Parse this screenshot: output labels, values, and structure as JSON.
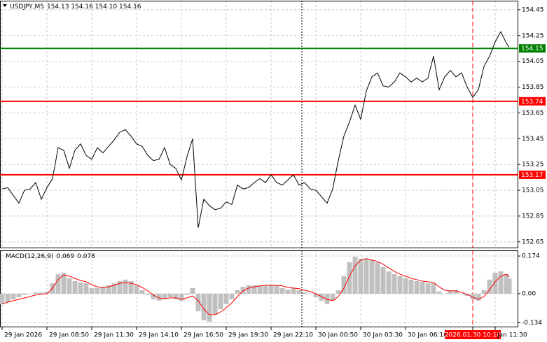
{
  "chart_data": [
    {
      "type": "line",
      "title": "USDJPY,M5",
      "subtitle": "154.13 154.16 154.10 154.16",
      "color": "#000000",
      "grid": true,
      "x": [
        0,
        4,
        8,
        12,
        16,
        20,
        24,
        28,
        32,
        36,
        40,
        44,
        48,
        52,
        56,
        60,
        64,
        68,
        72,
        76,
        80,
        84,
        88,
        92,
        96,
        100,
        104,
        108,
        112,
        116,
        120,
        124,
        128,
        132,
        136,
        140,
        144,
        148,
        152,
        156,
        160,
        164,
        168,
        172,
        176,
        180,
        184,
        188,
        192,
        196,
        200,
        204,
        208,
        212,
        216,
        220,
        224,
        228,
        232,
        236,
        240,
        244,
        248,
        252,
        256,
        260,
        264,
        268,
        272,
        276,
        280,
        284,
        288,
        292,
        296,
        300,
        304,
        308,
        312,
        316,
        320,
        324,
        328,
        332,
        336,
        340,
        344,
        348,
        352,
        356,
        360,
        362
      ],
      "values": [
        153.06,
        153.07,
        153.01,
        152.95,
        153.05,
        153.06,
        153.11,
        152.98,
        153.07,
        153.14,
        153.38,
        153.36,
        153.22,
        153.36,
        153.41,
        153.32,
        153.29,
        153.38,
        153.34,
        153.39,
        153.44,
        153.5,
        153.52,
        153.47,
        153.41,
        153.39,
        153.32,
        153.28,
        153.29,
        153.38,
        153.25,
        153.22,
        153.13,
        153.31,
        153.45,
        152.76,
        152.98,
        152.93,
        152.9,
        152.91,
        152.96,
        152.94,
        153.09,
        153.06,
        153.07,
        153.11,
        153.14,
        153.11,
        153.17,
        153.11,
        153.09,
        153.13,
        153.17,
        153.09,
        153.11,
        153.06,
        153.05,
        153.0,
        152.95,
        153.06,
        153.28,
        153.47,
        153.58,
        153.71,
        153.6,
        153.82,
        153.93,
        153.96,
        153.86,
        153.85,
        153.89,
        153.96,
        153.93,
        153.89,
        153.92,
        153.89,
        153.92,
        154.09,
        153.83,
        153.93,
        153.98,
        153.93,
        153.96,
        153.85,
        153.77,
        153.83,
        154.01,
        154.09,
        154.2,
        154.28,
        154.19,
        154.16
      ],
      "xlim": [
        -1.5,
        368.5
      ],
      "ylim": [
        152.6,
        154.52
      ],
      "yticks": [
        154.45,
        154.25,
        154.05,
        153.85,
        153.65,
        153.45,
        153.25,
        153.05,
        152.85,
        152.65
      ],
      "levels": [
        {
          "value": 154.15,
          "color": "#008000"
        },
        {
          "value": 153.74,
          "color": "#ff0000"
        },
        {
          "value": 153.17,
          "color": "#ff0000"
        }
      ],
      "vlines": [
        {
          "value": 214,
          "style": "dotted",
          "color": "#000000"
        },
        {
          "value": 336,
          "style": "dashed",
          "color": "#ff0000"
        }
      ]
    },
    {
      "type": "macd",
      "title": "MACD(12,26,9)",
      "color": "#c0c0c0",
      "signal_color": "#ff0000",
      "grid": true,
      "x": [
        0,
        4,
        8,
        12,
        16,
        20,
        24,
        28,
        32,
        36,
        40,
        44,
        48,
        52,
        56,
        60,
        64,
        68,
        72,
        76,
        80,
        84,
        88,
        92,
        96,
        100,
        104,
        108,
        112,
        116,
        120,
        124,
        128,
        132,
        136,
        140,
        144,
        148,
        152,
        156,
        160,
        164,
        168,
        172,
        176,
        180,
        184,
        188,
        192,
        196,
        200,
        204,
        208,
        212,
        216,
        220,
        224,
        228,
        232,
        236,
        240,
        244,
        248,
        252,
        256,
        260,
        264,
        268,
        272,
        276,
        280,
        284,
        288,
        292,
        296,
        300,
        304,
        308,
        312,
        316,
        320,
        324,
        328,
        332,
        336,
        340,
        344,
        348,
        352,
        356,
        360,
        362
      ],
      "values": [
        -0.048,
        -0.039,
        -0.026,
        -0.016,
        -0.006,
        0,
        0.006,
        0.006,
        0.01,
        0.048,
        0.09,
        0.097,
        0.071,
        0.058,
        0.052,
        0.048,
        0.026,
        0.026,
        0.032,
        0.039,
        0.048,
        0.058,
        0.065,
        0.058,
        0.039,
        0.016,
        -0.006,
        -0.026,
        -0.032,
        -0.026,
        -0.016,
        -0.026,
        -0.032,
        -0.006,
        0.026,
        -0.081,
        -0.123,
        -0.129,
        -0.097,
        -0.071,
        -0.048,
        -0.026,
        0.016,
        0.032,
        0.039,
        0.039,
        0.039,
        0.039,
        0.042,
        0.039,
        0.026,
        0.019,
        0.026,
        0.016,
        0.006,
        0,
        -0.016,
        -0.032,
        -0.048,
        -0.032,
        0.016,
        0.081,
        0.145,
        0.171,
        0.162,
        0.162,
        0.155,
        0.145,
        0.123,
        0.103,
        0.09,
        0.081,
        0.071,
        0.065,
        0.058,
        0.055,
        0.048,
        0.048,
        0.01,
        0,
        0.016,
        0.016,
        0,
        -0.01,
        -0.026,
        -0.032,
        0.016,
        0.065,
        0.097,
        0.103,
        0.09,
        0.069
      ],
      "signal": [
        -0.048,
        -0.039,
        -0.032,
        -0.026,
        -0.019,
        -0.013,
        -0.006,
        -0.003,
        0,
        0.026,
        0.065,
        0.087,
        0.081,
        0.071,
        0.061,
        0.055,
        0.042,
        0.032,
        0.029,
        0.032,
        0.039,
        0.048,
        0.052,
        0.048,
        0.042,
        0.029,
        0.013,
        -0.006,
        -0.019,
        -0.023,
        -0.019,
        -0.019,
        -0.026,
        -0.019,
        -0.01,
        -0.032,
        -0.071,
        -0.097,
        -0.097,
        -0.084,
        -0.065,
        -0.042,
        -0.013,
        0.013,
        0.026,
        0.032,
        0.036,
        0.039,
        0.039,
        0.039,
        0.036,
        0.029,
        0.026,
        0.023,
        0.016,
        0.01,
        0,
        -0.013,
        -0.026,
        -0.032,
        -0.013,
        0.026,
        0.081,
        0.129,
        0.155,
        0.162,
        0.155,
        0.149,
        0.136,
        0.119,
        0.103,
        0.09,
        0.081,
        0.071,
        0.065,
        0.058,
        0.055,
        0.052,
        0.032,
        0.016,
        0.013,
        0.013,
        0.006,
        -0.003,
        -0.016,
        -0.026,
        -0.013,
        0.019,
        0.055,
        0.081,
        0.09,
        0.078
      ],
      "xlim": [
        -1.5,
        368.5
      ],
      "ylim": [
        -0.155,
        0.2
      ],
      "yticks": [
        0.174,
        {
          "value": 0,
          "label": "0.00"
        },
        -0.134
      ],
      "xticks": [
        {
          "value": 0,
          "label": "29 Jan 2026"
        },
        {
          "value": 32,
          "label": "29 Jan 08:50"
        },
        {
          "value": 64,
          "label": "29 Jan 11:30"
        },
        {
          "value": 96,
          "label": "29 Jan 14:10"
        },
        {
          "value": 128,
          "label": "29 Jan 16:50"
        },
        {
          "value": 160,
          "label": "29 Jan 19:30"
        },
        {
          "value": 192,
          "label": "29 Jan 22:10"
        },
        {
          "value": 224,
          "label": "30 Jan 00:50"
        },
        {
          "value": 256,
          "label": "30 Jan 03:30"
        },
        {
          "value": 288,
          "label": "30 Jan 06:10"
        },
        {
          "value": 336,
          "label": "2026.01.30 10:10"
        },
        {
          "value": 352,
          "label": "Jan 11:30"
        }
      ]
    }
  ]
}
